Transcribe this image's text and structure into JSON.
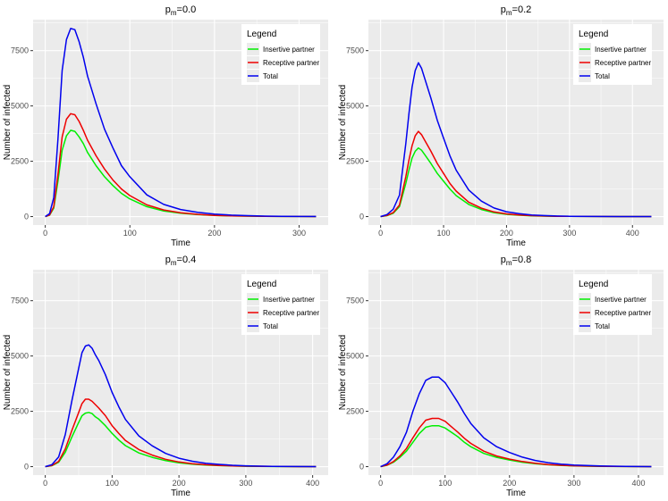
{
  "colors": {
    "panel_bg": "#ebebeb",
    "grid": "#ffffff",
    "insertive": "#00ee00",
    "receptive": "#ee0000",
    "total": "#0000ee",
    "text": "#000000",
    "tick_text": "#4d4d4d"
  },
  "chart_data": [
    {
      "type": "line",
      "title_base": "p",
      "title_sub": "m",
      "title_value": "=0.0",
      "xlabel": "Time",
      "ylabel": "Number of infected",
      "xlim": [
        0,
        320
      ],
      "ylim": [
        0,
        8500
      ],
      "xticks": [
        0,
        100,
        200,
        300
      ],
      "yticks": [
        0,
        2500,
        5000,
        7500
      ],
      "legend": {
        "title": "Legend",
        "position": "top-right"
      },
      "x": [
        0,
        5,
        10,
        15,
        20,
        25,
        30,
        35,
        40,
        45,
        50,
        60,
        70,
        80,
        90,
        100,
        120,
        140,
        160,
        180,
        200,
        220,
        240,
        260,
        280,
        300,
        320
      ],
      "series": [
        {
          "name": "Insertive partner",
          "color_key": "insertive",
          "values": [
            0,
            60,
            380,
            1600,
            3000,
            3650,
            3900,
            3850,
            3600,
            3300,
            2900,
            2300,
            1800,
            1400,
            1050,
            800,
            450,
            250,
            150,
            90,
            50,
            30,
            20,
            10,
            5,
            3,
            2
          ]
        },
        {
          "name": "Receptive partner",
          "color_key": "receptive",
          "values": [
            0,
            70,
            450,
            1900,
            3600,
            4400,
            4650,
            4600,
            4300,
            3900,
            3450,
            2750,
            2150,
            1650,
            1250,
            950,
            530,
            300,
            170,
            100,
            55,
            35,
            20,
            12,
            6,
            3,
            2
          ]
        },
        {
          "name": "Total",
          "color_key": "total",
          "values": [
            0,
            130,
            850,
            3500,
            6600,
            8000,
            8500,
            8450,
            7900,
            7200,
            6350,
            5100,
            3950,
            3100,
            2300,
            1800,
            980,
            550,
            320,
            190,
            110,
            65,
            40,
            22,
            11,
            6,
            4
          ]
        }
      ]
    },
    {
      "type": "line",
      "title_base": "p",
      "title_sub": "m",
      "title_value": "=0.2",
      "xlabel": "Time",
      "ylabel": "Number of infected",
      "xlim": [
        0,
        430
      ],
      "ylim": [
        0,
        8500
      ],
      "xticks": [
        0,
        100,
        200,
        300,
        400
      ],
      "yticks": [
        0,
        2500,
        5000,
        7500
      ],
      "legend": {
        "title": "Legend",
        "position": "top-right"
      },
      "x": [
        0,
        10,
        20,
        30,
        40,
        45,
        50,
        55,
        60,
        65,
        70,
        80,
        90,
        100,
        110,
        120,
        140,
        160,
        180,
        200,
        220,
        240,
        260,
        280,
        300,
        340,
        380,
        430
      ],
      "series": [
        {
          "name": "Insertive partner",
          "color_key": "insertive",
          "values": [
            0,
            40,
            150,
            450,
            1500,
            2100,
            2650,
            2950,
            3100,
            3000,
            2800,
            2400,
            1950,
            1600,
            1250,
            950,
            550,
            320,
            180,
            100,
            60,
            35,
            20,
            12,
            7,
            3,
            1,
            0
          ]
        },
        {
          "name": "Receptive partner",
          "color_key": "receptive",
          "values": [
            0,
            50,
            180,
            520,
            1800,
            2550,
            3200,
            3650,
            3850,
            3700,
            3450,
            2950,
            2400,
            1950,
            1500,
            1150,
            650,
            380,
            210,
            120,
            70,
            40,
            24,
            14,
            8,
            3,
            1,
            0
          ]
        },
        {
          "name": "Total",
          "color_key": "total",
          "values": [
            0,
            90,
            330,
            970,
            3300,
            4650,
            5850,
            6600,
            6950,
            6700,
            6250,
            5350,
            4350,
            3550,
            2750,
            2100,
            1200,
            700,
            390,
            220,
            130,
            75,
            44,
            26,
            15,
            6,
            2,
            0
          ]
        }
      ]
    },
    {
      "type": "line",
      "title_base": "p",
      "title_sub": "m",
      "title_value": "=0.4",
      "xlabel": "Time",
      "ylabel": "Number of infected",
      "xlim": [
        0,
        405
      ],
      "ylim": [
        0,
        8500
      ],
      "xticks": [
        0,
        100,
        200,
        300,
        400
      ],
      "yticks": [
        0,
        2500,
        5000,
        7500
      ],
      "legend": {
        "title": "Legend",
        "position": "top-right"
      },
      "x": [
        0,
        10,
        20,
        30,
        40,
        50,
        55,
        60,
        65,
        70,
        75,
        80,
        90,
        100,
        110,
        120,
        140,
        160,
        180,
        200,
        220,
        240,
        260,
        280,
        300,
        340,
        380,
        405
      ],
      "series": [
        {
          "name": "Insertive partner",
          "color_key": "insertive",
          "values": [
            0,
            40,
            200,
            650,
            1350,
            2000,
            2300,
            2420,
            2450,
            2400,
            2250,
            2150,
            1850,
            1500,
            1200,
            950,
            620,
            420,
            270,
            170,
            110,
            70,
            45,
            28,
            17,
            6,
            2,
            0
          ]
        },
        {
          "name": "Receptive partner",
          "color_key": "receptive",
          "values": [
            0,
            50,
            240,
            800,
            1650,
            2450,
            2850,
            3050,
            3050,
            2950,
            2800,
            2650,
            2300,
            1850,
            1500,
            1180,
            770,
            520,
            330,
            210,
            135,
            85,
            55,
            34,
            21,
            8,
            2,
            0
          ]
        },
        {
          "name": "Total",
          "color_key": "total",
          "values": [
            0,
            90,
            440,
            1450,
            3000,
            4450,
            5150,
            5450,
            5500,
            5350,
            5050,
            4800,
            4150,
            3350,
            2700,
            2130,
            1390,
            940,
            600,
            380,
            245,
            155,
            100,
            62,
            38,
            14,
            4,
            0
          ]
        }
      ]
    },
    {
      "type": "line",
      "title_base": "p",
      "title_sub": "m",
      "title_value": "=0.8",
      "xlabel": "Time",
      "ylabel": "Number of infected",
      "xlim": [
        0,
        420
      ],
      "ylim": [
        0,
        8500
      ],
      "xticks": [
        0,
        100,
        200,
        300,
        400
      ],
      "yticks": [
        0,
        2500,
        5000,
        7500
      ],
      "legend": {
        "title": "Legend",
        "position": "top-right"
      },
      "x": [
        0,
        10,
        20,
        30,
        40,
        50,
        60,
        70,
        80,
        90,
        100,
        110,
        120,
        130,
        140,
        160,
        180,
        200,
        220,
        240,
        260,
        280,
        300,
        340,
        380,
        420
      ],
      "series": [
        {
          "name": "Insertive partner",
          "color_key": "insertive",
          "values": [
            0,
            60,
            200,
            420,
            700,
            1100,
            1500,
            1780,
            1850,
            1850,
            1750,
            1550,
            1350,
            1100,
            900,
            600,
            420,
            300,
            200,
            130,
            85,
            55,
            35,
            15,
            5,
            0
          ]
        },
        {
          "name": "Receptive partner",
          "color_key": "receptive",
          "values": [
            0,
            70,
            230,
            480,
            820,
            1300,
            1750,
            2100,
            2180,
            2180,
            2050,
            1800,
            1550,
            1280,
            1050,
            700,
            480,
            340,
            230,
            150,
            95,
            60,
            38,
            16,
            5,
            0
          ]
        },
        {
          "name": "Total",
          "color_key": "total",
          "values": [
            0,
            130,
            430,
            900,
            1550,
            2500,
            3300,
            3900,
            4050,
            4050,
            3800,
            3350,
            2900,
            2400,
            1950,
            1300,
            900,
            640,
            430,
            280,
            180,
            115,
            73,
            31,
            10,
            0
          ]
        }
      ]
    }
  ]
}
